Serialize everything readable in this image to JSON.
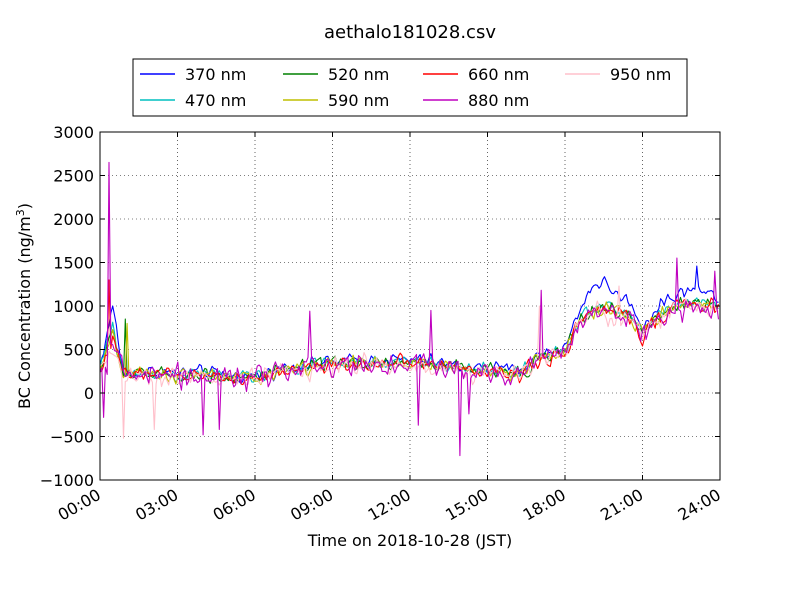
{
  "chart_data": {
    "type": "line",
    "title": "aethalo181028.csv",
    "xlabel": "Time on 2018-10-28 (JST)",
    "ylabel_main": "BC Concentration (ng/m",
    "ylabel_sup": "3",
    "ylabel_close": ")",
    "xlim": [
      "00:00",
      "24:00"
    ],
    "ylim": [
      -1000,
      3000
    ],
    "x_ticks": [
      "00:00",
      "03:00",
      "06:00",
      "09:00",
      "12:00",
      "15:00",
      "18:00",
      "21:00",
      "24:00"
    ],
    "y_ticks": [
      "−1000",
      "−500",
      "0",
      "500",
      "1000",
      "1500",
      "2000",
      "2500",
      "3000"
    ],
    "grid": true,
    "legend_position": "top",
    "series": [
      {
        "name": "370 nm",
        "color": "#0000ff",
        "trend": [
          [
            0,
            300
          ],
          [
            0.5,
            1000
          ],
          [
            0.9,
            220
          ],
          [
            2,
            250
          ],
          [
            3,
            230
          ],
          [
            4,
            240
          ],
          [
            5,
            200
          ],
          [
            6,
            190
          ],
          [
            7,
            280
          ],
          [
            8,
            330
          ],
          [
            9,
            360
          ],
          [
            10,
            380
          ],
          [
            11,
            380
          ],
          [
            12,
            380
          ],
          [
            13,
            360
          ],
          [
            14,
            300
          ],
          [
            15,
            280
          ],
          [
            16,
            270
          ],
          [
            16.5,
            300
          ],
          [
            17,
            450
          ],
          [
            18,
            520
          ],
          [
            18.5,
            900
          ],
          [
            19,
            1220
          ],
          [
            19.5,
            1280
          ],
          [
            20,
            1130
          ],
          [
            20.5,
            1050
          ],
          [
            21,
            760
          ],
          [
            21.5,
            950
          ],
          [
            22,
            1100
          ],
          [
            22.5,
            1150
          ],
          [
            23,
            1200
          ],
          [
            23.5,
            1150
          ],
          [
            24,
            1080
          ]
        ],
        "noise": 90
      },
      {
        "name": "470 nm",
        "color": "#00bfbf",
        "trend": [
          [
            0,
            270
          ],
          [
            0.5,
            800
          ],
          [
            0.9,
            200
          ],
          [
            2,
            230
          ],
          [
            3,
            210
          ],
          [
            4,
            220
          ],
          [
            5,
            190
          ],
          [
            6,
            180
          ],
          [
            7,
            260
          ],
          [
            8,
            310
          ],
          [
            9,
            340
          ],
          [
            10,
            350
          ],
          [
            11,
            350
          ],
          [
            12,
            350
          ],
          [
            13,
            340
          ],
          [
            14,
            280
          ],
          [
            15,
            260
          ],
          [
            16,
            250
          ],
          [
            16.5,
            280
          ],
          [
            17,
            410
          ],
          [
            18,
            480
          ],
          [
            18.5,
            820
          ],
          [
            19,
            960
          ],
          [
            19.5,
            1000
          ],
          [
            20,
            950
          ],
          [
            20.5,
            900
          ],
          [
            21,
            720
          ],
          [
            21.5,
            880
          ],
          [
            22,
            980
          ],
          [
            22.5,
            1050
          ],
          [
            23,
            1050
          ],
          [
            23.5,
            1030
          ],
          [
            24,
            1000
          ]
        ],
        "noise": 90
      },
      {
        "name": "520 nm",
        "color": "#008000",
        "trend": [
          [
            0,
            260
          ],
          [
            0.5,
            700
          ],
          [
            0.9,
            200
          ],
          [
            2,
            220
          ],
          [
            3,
            200
          ],
          [
            4,
            210
          ],
          [
            5,
            180
          ],
          [
            6,
            175
          ],
          [
            7,
            250
          ],
          [
            8,
            300
          ],
          [
            9,
            330
          ],
          [
            10,
            345
          ],
          [
            11,
            345
          ],
          [
            12,
            340
          ],
          [
            13,
            335
          ],
          [
            14,
            275
          ],
          [
            15,
            255
          ],
          [
            16,
            245
          ],
          [
            16.5,
            275
          ],
          [
            17,
            400
          ],
          [
            18,
            470
          ],
          [
            18.5,
            800
          ],
          [
            19,
            940
          ],
          [
            19.5,
            980
          ],
          [
            20,
            930
          ],
          [
            20.5,
            880
          ],
          [
            21,
            700
          ],
          [
            21.5,
            860
          ],
          [
            22,
            960
          ],
          [
            22.5,
            1030
          ],
          [
            23,
            1040
          ],
          [
            23.5,
            1020
          ],
          [
            24,
            990
          ]
        ],
        "noise": 100
      },
      {
        "name": "590 nm",
        "color": "#bfbf00",
        "trend": [
          [
            0,
            250
          ],
          [
            0.5,
            650
          ],
          [
            0.9,
            210
          ],
          [
            2,
            220
          ],
          [
            3,
            200
          ],
          [
            4,
            205
          ],
          [
            5,
            180
          ],
          [
            6,
            170
          ],
          [
            7,
            250
          ],
          [
            8,
            300
          ],
          [
            9,
            330
          ],
          [
            10,
            340
          ],
          [
            11,
            340
          ],
          [
            12,
            335
          ],
          [
            13,
            330
          ],
          [
            14,
            270
          ],
          [
            15,
            250
          ],
          [
            16,
            240
          ],
          [
            16.5,
            270
          ],
          [
            17,
            395
          ],
          [
            18,
            460
          ],
          [
            18.5,
            790
          ],
          [
            19,
            930
          ],
          [
            19.5,
            970
          ],
          [
            20,
            920
          ],
          [
            20.5,
            870
          ],
          [
            21,
            690
          ],
          [
            21.5,
            850
          ],
          [
            22,
            950
          ],
          [
            22.5,
            1020
          ],
          [
            23,
            1030
          ],
          [
            23.5,
            1010
          ],
          [
            24,
            980
          ]
        ],
        "noise": 100
      },
      {
        "name": "660 nm",
        "color": "#ff0000",
        "trend": [
          [
            0,
            250
          ],
          [
            0.5,
            620
          ],
          [
            0.9,
            200
          ],
          [
            2,
            215
          ],
          [
            3,
            195
          ],
          [
            4,
            200
          ],
          [
            5,
            178
          ],
          [
            6,
            168
          ],
          [
            7,
            245
          ],
          [
            8,
            295
          ],
          [
            9,
            325
          ],
          [
            10,
            335
          ],
          [
            11,
            335
          ],
          [
            12,
            330
          ],
          [
            13,
            325
          ],
          [
            14,
            268
          ],
          [
            15,
            248
          ],
          [
            16,
            238
          ],
          [
            16.5,
            268
          ],
          [
            17,
            390
          ],
          [
            18,
            455
          ],
          [
            18.5,
            780
          ],
          [
            19,
            920
          ],
          [
            19.5,
            960
          ],
          [
            20,
            910
          ],
          [
            20.5,
            860
          ],
          [
            21,
            680
          ],
          [
            21.5,
            840
          ],
          [
            22,
            940
          ],
          [
            22.5,
            1010
          ],
          [
            23,
            1020
          ],
          [
            23.5,
            1000
          ],
          [
            24,
            970
          ]
        ],
        "noise": 110
      },
      {
        "name": "880 nm",
        "color": "#bf00bf",
        "trend": [
          [
            0,
            240
          ],
          [
            0.5,
            600
          ],
          [
            0.9,
            190
          ],
          [
            2,
            210
          ],
          [
            3,
            190
          ],
          [
            4,
            195
          ],
          [
            5,
            175
          ],
          [
            6,
            165
          ],
          [
            7,
            240
          ],
          [
            8,
            290
          ],
          [
            9,
            320
          ],
          [
            10,
            330
          ],
          [
            11,
            330
          ],
          [
            12,
            325
          ],
          [
            13,
            320
          ],
          [
            14,
            265
          ],
          [
            15,
            245
          ],
          [
            16,
            235
          ],
          [
            16.5,
            265
          ],
          [
            17,
            385
          ],
          [
            18,
            450
          ],
          [
            18.5,
            770
          ],
          [
            19,
            900
          ],
          [
            19.5,
            940
          ],
          [
            20,
            890
          ],
          [
            20.5,
            840
          ],
          [
            21,
            660
          ],
          [
            21.5,
            820
          ],
          [
            22,
            920
          ],
          [
            22.5,
            990
          ],
          [
            23,
            1000
          ],
          [
            23.5,
            980
          ],
          [
            24,
            950
          ]
        ],
        "noise": 170
      },
      {
        "name": "950 nm",
        "color": "#ffc0cb",
        "trend": [
          [
            0,
            230
          ],
          [
            0.5,
            560
          ],
          [
            0.9,
            180
          ],
          [
            2,
            200
          ],
          [
            3,
            180
          ],
          [
            4,
            185
          ],
          [
            5,
            165
          ],
          [
            6,
            160
          ],
          [
            7,
            230
          ],
          [
            8,
            280
          ],
          [
            9,
            310
          ],
          [
            10,
            320
          ],
          [
            11,
            320
          ],
          [
            12,
            315
          ],
          [
            13,
            310
          ],
          [
            14,
            255
          ],
          [
            15,
            235
          ],
          [
            16,
            225
          ],
          [
            16.5,
            255
          ],
          [
            17,
            375
          ],
          [
            18,
            440
          ],
          [
            18.5,
            750
          ],
          [
            19,
            880
          ],
          [
            19.5,
            920
          ],
          [
            20,
            870
          ],
          [
            20.5,
            820
          ],
          [
            21,
            650
          ],
          [
            21.5,
            800
          ],
          [
            22,
            900
          ],
          [
            22.5,
            970
          ],
          [
            23,
            980
          ],
          [
            23.5,
            960
          ],
          [
            24,
            930
          ]
        ],
        "noise": 150
      }
    ],
    "spikes": [
      {
        "series": "880 nm",
        "x": 0.35,
        "y": 2650
      },
      {
        "series": "660 nm",
        "x": 0.38,
        "y": 1300
      },
      {
        "series": "880 nm",
        "x": 0.15,
        "y": -280
      },
      {
        "series": "950 nm",
        "x": 0.9,
        "y": -520
      },
      {
        "series": "520 nm",
        "x": 1.0,
        "y": 850
      },
      {
        "series": "590 nm",
        "x": 1.05,
        "y": 800
      },
      {
        "series": "950 nm",
        "x": 2.1,
        "y": -420
      },
      {
        "series": "880 nm",
        "x": 4.0,
        "y": -480
      },
      {
        "series": "880 nm",
        "x": 4.6,
        "y": -420
      },
      {
        "series": "880 nm",
        "x": 8.1,
        "y": 940
      },
      {
        "series": "880 nm",
        "x": 12.3,
        "y": -370
      },
      {
        "series": "880 nm",
        "x": 12.8,
        "y": 950
      },
      {
        "series": "880 nm",
        "x": 13.9,
        "y": -720
      },
      {
        "series": "880 nm",
        "x": 14.3,
        "y": -240
      },
      {
        "series": "880 nm",
        "x": 17.1,
        "y": 1180
      },
      {
        "series": "950 nm",
        "x": 17.0,
        "y": 1000
      },
      {
        "series": "880 nm",
        "x": 22.3,
        "y": 1550
      },
      {
        "series": "880 nm",
        "x": 23.8,
        "y": 1400
      },
      {
        "series": "370 nm",
        "x": 23.1,
        "y": 1460
      },
      {
        "series": "950 nm",
        "x": 20.1,
        "y": 1230
      }
    ]
  }
}
